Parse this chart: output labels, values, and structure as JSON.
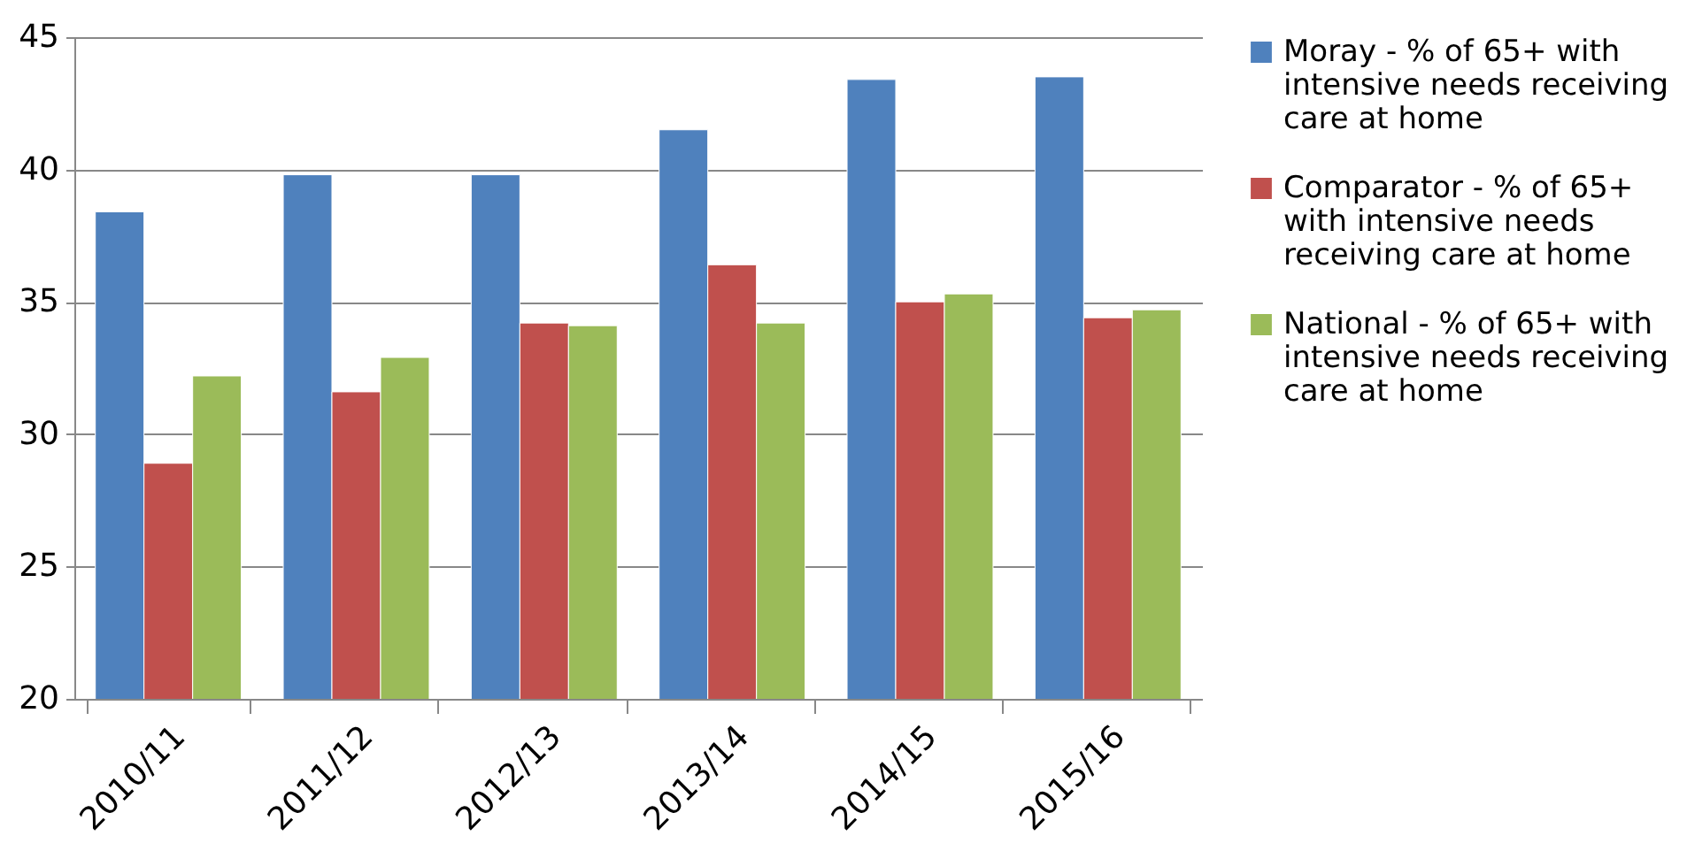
{
  "chart_data": {
    "type": "bar",
    "categories": [
      "2010/11",
      "2011/12",
      "2012/13",
      "2013/14",
      "2014/15",
      "2015/16"
    ],
    "series": [
      {
        "name": "Moray - % of 65+ with intensive needs receiving care at home",
        "color": "#4f81bd",
        "values": [
          38.4,
          39.8,
          39.8,
          41.5,
          43.4,
          43.5
        ]
      },
      {
        "name": "Comparator - % of 65+ with intensive needs receiving care at home",
        "color": "#c0504d",
        "values": [
          28.9,
          31.6,
          34.2,
          36.4,
          35.0,
          34.4
        ]
      },
      {
        "name": "National - % of 65+ with intensive needs receiving care at home",
        "color": "#9bbb59",
        "values": [
          32.2,
          32.9,
          34.1,
          34.2,
          35.3,
          34.7
        ]
      }
    ],
    "ylim": [
      20,
      45
    ],
    "yticks": [
      20,
      25,
      30,
      35,
      40,
      45
    ],
    "grid": "y",
    "legend": "right"
  }
}
